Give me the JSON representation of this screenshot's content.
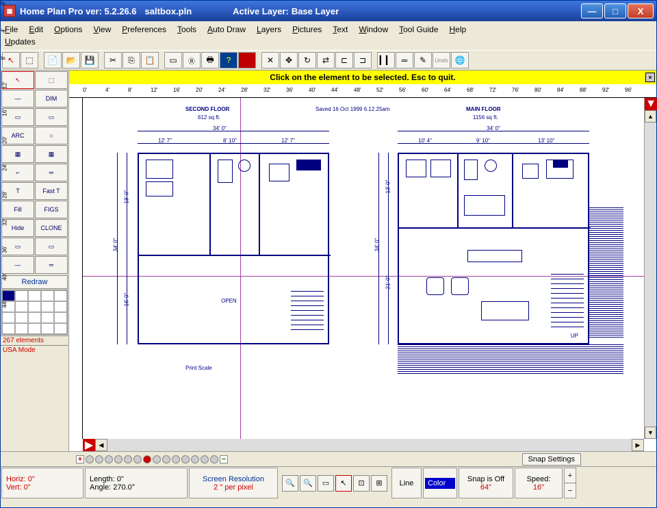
{
  "title": {
    "app": "Home Plan Pro ver: 5.2.26.6",
    "file": "saltbox.pln",
    "layer_label": "Active Layer:",
    "layer": "Base Layer"
  },
  "menu": {
    "row1": [
      "File",
      "Edit",
      "Options",
      "View",
      "Preferences",
      "Tools",
      "Auto Draw",
      "Layers",
      "Pictures",
      "Text",
      "Window",
      "Tool Guide",
      "Help"
    ],
    "row2": [
      "Updates"
    ]
  },
  "yellowbar": "Click on the element to be selected.  Esc to quit.",
  "ruler_h": [
    "0'",
    "4'",
    "8'",
    "12'",
    "16'",
    "20'",
    "24'",
    "28'",
    "32'",
    "36'",
    "40'",
    "44'",
    "48'",
    "52'",
    "56'",
    "60'",
    "64'",
    "68'",
    "72'",
    "76'",
    "80'",
    "84'",
    "88'",
    "92'",
    "96'"
  ],
  "ruler_v": [
    "0'",
    "4'",
    "8'",
    "12'",
    "16'",
    "20'",
    "24'",
    "28'",
    "32'",
    "36'",
    "40'",
    "44'"
  ],
  "left_tools": [
    [
      "↖",
      "⬚"
    ],
    [
      "—",
      "DIM"
    ],
    [
      "▭",
      "▭"
    ],
    [
      "ARC",
      "○"
    ],
    [
      "▦",
      "▦"
    ],
    [
      "⌐",
      "═"
    ],
    [
      "T",
      "Fast T"
    ],
    [
      "Fill",
      "FIGS"
    ],
    [
      "Hide",
      "CLONE"
    ],
    [
      "▭",
      "▭"
    ],
    [
      "—",
      "═"
    ]
  ],
  "redraw": "Redraw",
  "left_status": {
    "elements": "267 elements",
    "mode": "USA Mode"
  },
  "plan": {
    "saved": "Saved 16 Oct 1999  6.12.25am",
    "left": {
      "title": "SECOND FLOOR",
      "area": "612 sq ft.",
      "width": "34' 0\"",
      "cols": [
        "12' 7\"",
        "8' 10\"",
        "12' 7\""
      ],
      "h_total": "34' 0\"",
      "h_top": "18' 0\"",
      "h_bot": "16' 0\"",
      "open": "OPEN",
      "print": "Print Scale"
    },
    "right": {
      "title": "MAIN FLOOR",
      "area": "1156 sq ft.",
      "width": "34' 0\"",
      "cols": [
        "10' 4\"",
        "9' 10\"",
        "13' 10\""
      ],
      "h_total": "34' 0\"",
      "h_top": "13' 0\"",
      "h_bot": "21' 0\"",
      "up": "UP"
    }
  },
  "snap_settings": "Snap Settings",
  "status": {
    "horiz": "Horiz:  0\"",
    "vert": "Vert:  0\"",
    "length": "Length:   0\"",
    "angle": "Angle: 270.0°",
    "res1": "Screen Resolution",
    "res2": "2 \" per pixel",
    "line": "Line",
    "color": "Color",
    "snap1": "Snap is Off",
    "snap2": "64\"",
    "speed1": "Speed:",
    "speed2": "16\""
  },
  "colors": {
    "accent": "#000080",
    "cross": "#a040a0",
    "yellow": "#ffff00",
    "red": "#c00000"
  }
}
